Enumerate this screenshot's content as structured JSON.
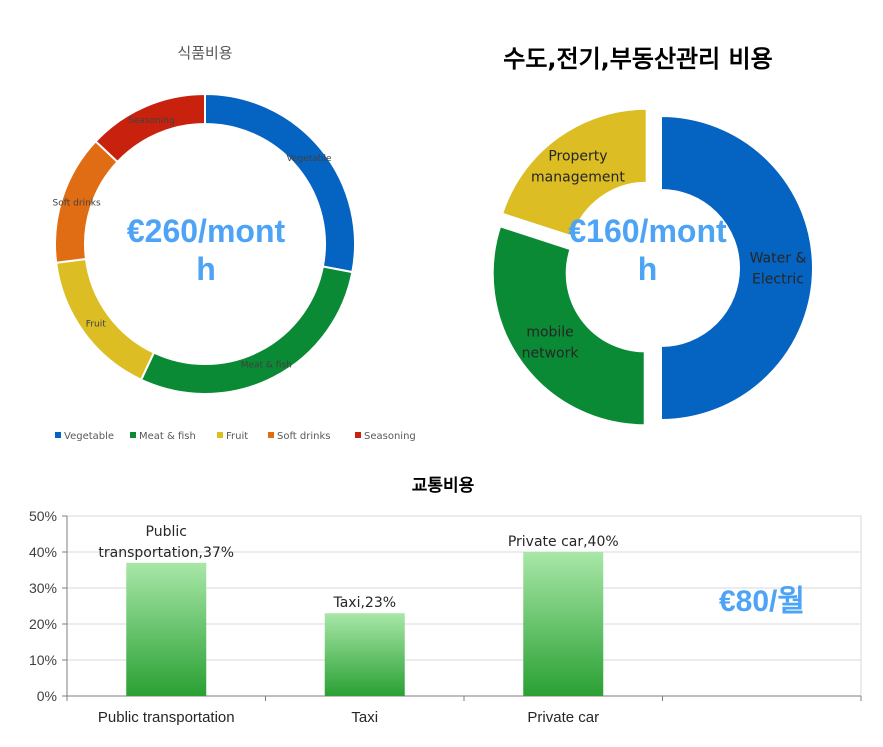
{
  "chart_data": [
    {
      "type": "pie",
      "title": "식품비용",
      "center_text": "€260/mont h",
      "center_lines": [
        "€260/mont",
        "h"
      ],
      "categories": [
        "Vegetable",
        "Meat & fish",
        "Fruit",
        "Soft drinks",
        "Seasoning"
      ],
      "values": [
        28,
        29,
        16,
        14,
        13
      ],
      "colors": [
        "#0563c1",
        "#0a8a34",
        "#dcbd24",
        "#e06c14",
        "#c8220e"
      ],
      "legend_position": "bottom"
    },
    {
      "type": "pie",
      "title": "수도,전기,부동산관리 비용",
      "center_text": "€160/mont h",
      "center_lines": [
        "€160/mont",
        "h"
      ],
      "categories": [
        "Water & Electric",
        "mobile network",
        "Property management"
      ],
      "label_lines": [
        [
          "Water &",
          "Electric"
        ],
        [
          "mobile",
          "network"
        ],
        [
          "Property",
          "management"
        ]
      ],
      "values": [
        50,
        30,
        20
      ],
      "colors": [
        "#0563c1",
        "#0a8a34",
        "#dcbd24"
      ]
    },
    {
      "type": "bar",
      "title": "교통비용",
      "categories": [
        "Public transportation",
        "Taxi",
        "Private car"
      ],
      "values": [
        37,
        23,
        40
      ],
      "data_labels": [
        [
          "Public",
          "transportation,37%"
        ],
        [
          "Taxi,23%"
        ],
        [
          "Private car,40%"
        ]
      ],
      "yticks": [
        "0%",
        "10%",
        "20%",
        "30%",
        "40%",
        "50%"
      ],
      "ylim": [
        0,
        50
      ],
      "grid": true,
      "annotation": "€80/월"
    }
  ]
}
